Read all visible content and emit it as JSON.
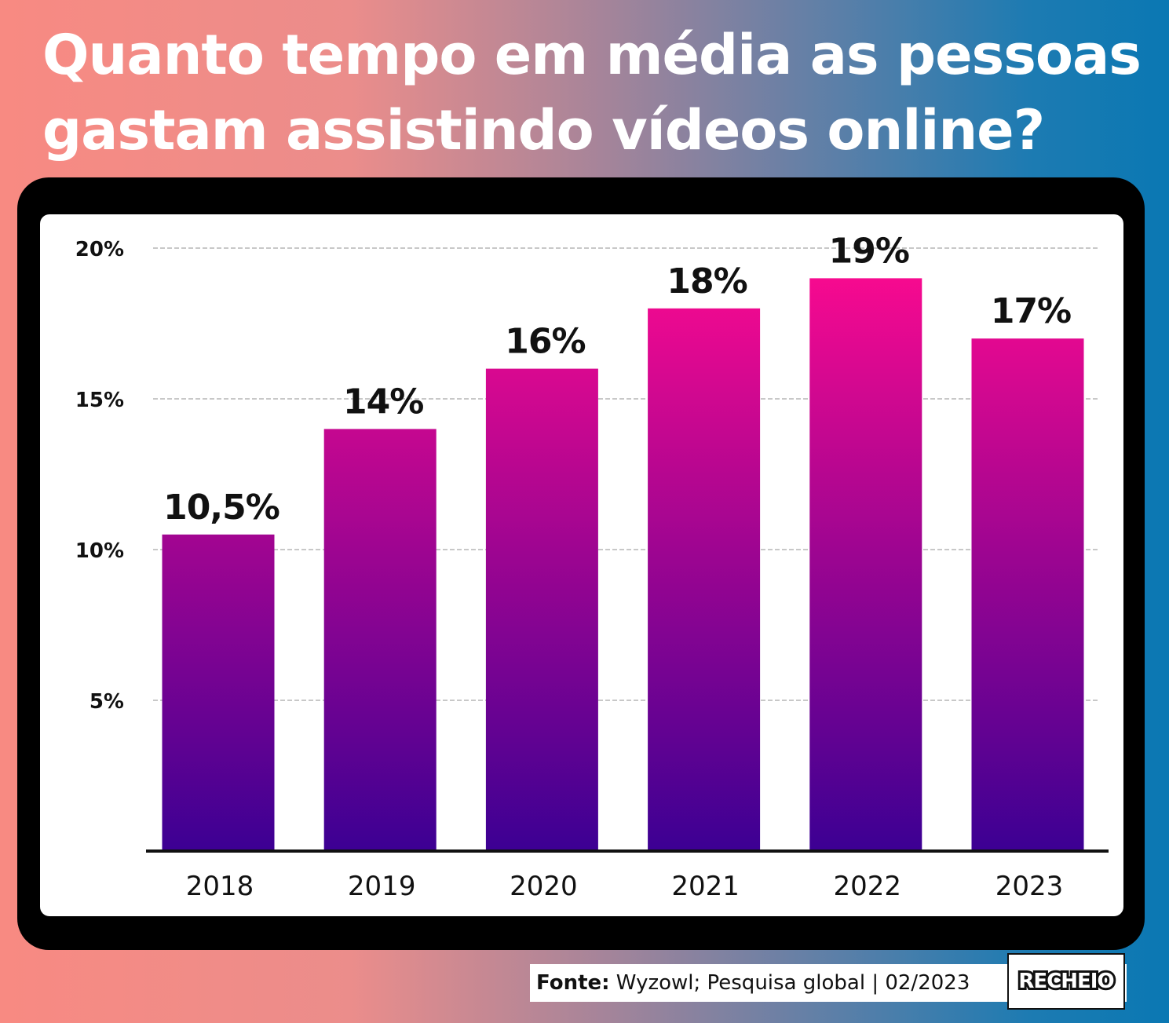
{
  "title": {
    "line1": "Quanto tempo em média as pessoas",
    "line2": "gastam assistindo vídeos online?"
  },
  "footer": {
    "source_label": "Fonte:",
    "source_text": " Wyzowl; Pesquisa global | 02/2023",
    "brand": "RECHEIO"
  },
  "colors": {
    "bar_top": "#ff0a8f",
    "bar_bottom": "#3c0093",
    "axis": "#111111",
    "grid": "#c8c8c8"
  },
  "chart_data": {
    "type": "bar",
    "title": "Quanto tempo em média as pessoas gastam assistindo vídeos online?",
    "xlabel": "",
    "ylabel": "",
    "categories": [
      "2018",
      "2019",
      "2020",
      "2021",
      "2022",
      "2023"
    ],
    "values": [
      10.5,
      14,
      16,
      18,
      19,
      17
    ],
    "data_labels": [
      "10,5%",
      "14%",
      "16%",
      "18%",
      "19%",
      "17%"
    ],
    "ylim": [
      0,
      20
    ],
    "yticks": [
      5,
      10,
      15,
      20
    ],
    "ytick_labels": [
      "5%",
      "10%",
      "15%",
      "20%"
    ],
    "grid": true,
    "legend": "none"
  }
}
